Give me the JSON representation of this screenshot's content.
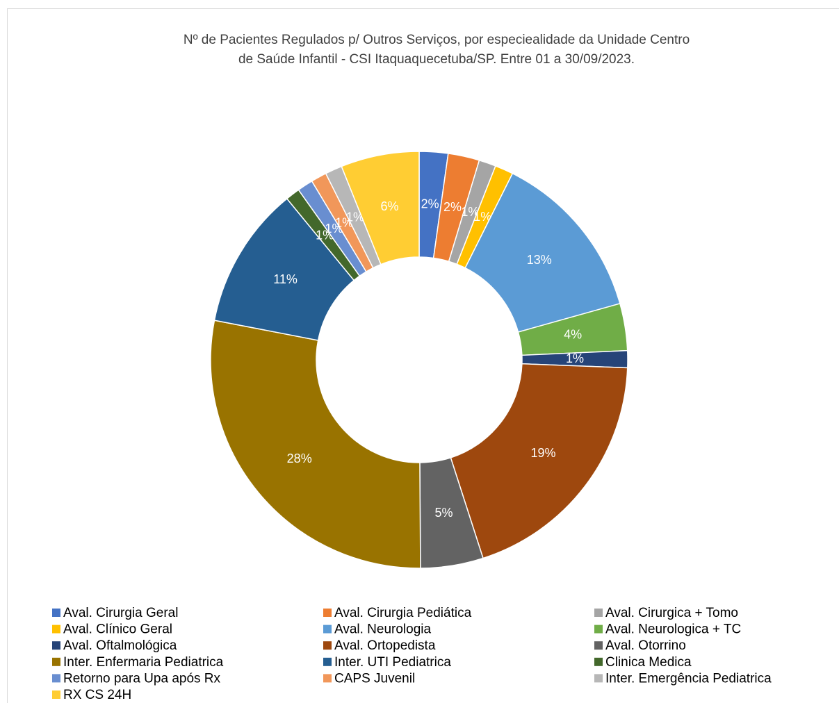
{
  "chart_data": {
    "type": "donut",
    "title": [
      "Nº de Pacientes Regulados p/ Outros Serviços, por especiealidade da Unidade Centro",
      "de Saúde Infantil - CSI Itaquaquecetuba/SP. Entre  01 a 30/09/2023."
    ],
    "categories": [
      "Aval. Cirurgia Geral",
      "Aval. Cirurgia Pediática",
      "Aval. Cirurgica + Tomo",
      "Aval. Clínico Geral",
      "Aval. Neurologia",
      "Aval. Neurologica + TC",
      "Aval. Oftalmológica",
      "Aval. Ortopedista",
      "Aval. Otorrino",
      "Inter. Enfermaria Pediatrica",
      "Inter. UTI Pediatrica",
      "Clinica Medica",
      "Retorno para Upa após Rx",
      "CAPS Juvenil",
      "Inter. Emergência Pediatrica",
      "RX CS 24H"
    ],
    "values": [
      2.2,
      2.4,
      1.3,
      1.4,
      13.1,
      3.6,
      1.3,
      19.2,
      4.8,
      27.8,
      10.9,
      1.1,
      1.2,
      1.2,
      1.3,
      6.0
    ],
    "value_labels": [
      "2%",
      "2%",
      "1%",
      "1%",
      "13%",
      "4%",
      "1%",
      "19%",
      "5%",
      "28%",
      "11%",
      "1%",
      "1%",
      "1%",
      "1%",
      "6%"
    ],
    "colors": [
      "#4472C4",
      "#ED7D31",
      "#A5A5A5",
      "#FFC000",
      "#5B9BD5",
      "#70AD47",
      "#264478",
      "#9E480E",
      "#636363",
      "#997300",
      "#255E91",
      "#43682B",
      "#698ED0",
      "#F1975A",
      "#B7B7B7",
      "#FFCD33"
    ],
    "legend": "bottom"
  }
}
